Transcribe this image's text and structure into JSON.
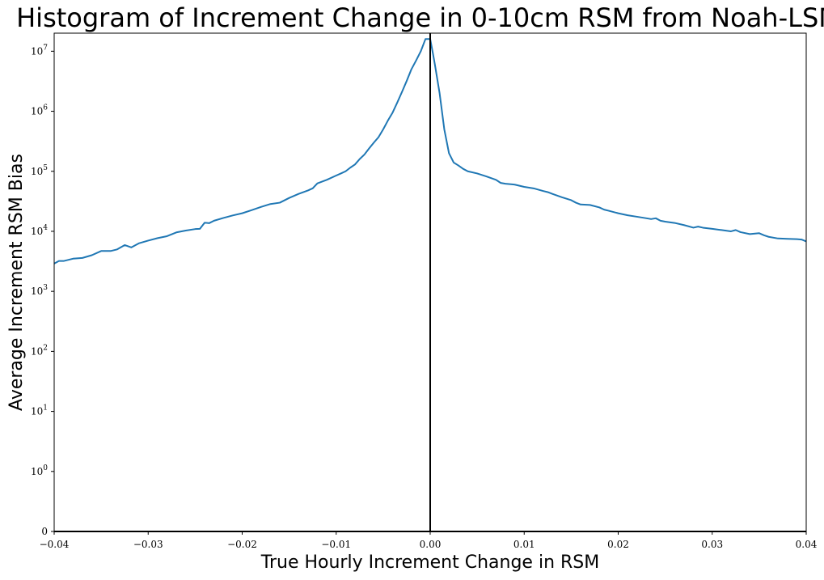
{
  "chart_data": {
    "type": "line",
    "title": "Histogram of Increment Change in 0-10cm RSM from Noah-LSM",
    "xlabel": "True Hourly Increment Change in RSM",
    "ylabel": "Average Increment RSM Bias",
    "xlim": [
      -0.04,
      0.04
    ],
    "ylim": [
      0,
      20000000
    ],
    "yscale": "symlog",
    "linthresh": 1,
    "grid": false,
    "legend": "none",
    "x_ticks": [
      {
        "value": -0.04,
        "label": "−0.04"
      },
      {
        "value": -0.03,
        "label": "−0.03"
      },
      {
        "value": -0.02,
        "label": "−0.02"
      },
      {
        "value": -0.01,
        "label": "−0.01"
      },
      {
        "value": 0.0,
        "label": "0.00"
      },
      {
        "value": 0.01,
        "label": "0.01"
      },
      {
        "value": 0.02,
        "label": "0.02"
      },
      {
        "value": 0.03,
        "label": "0.03"
      },
      {
        "value": 0.04,
        "label": "0.04"
      }
    ],
    "y_ticks": [
      {
        "value": 0,
        "base": "0",
        "exp": ""
      },
      {
        "value": 1,
        "base": "10",
        "exp": "0"
      },
      {
        "value": 10,
        "base": "10",
        "exp": "1"
      },
      {
        "value": 100,
        "base": "10",
        "exp": "2"
      },
      {
        "value": 1000,
        "base": "10",
        "exp": "3"
      },
      {
        "value": 10000,
        "base": "10",
        "exp": "4"
      },
      {
        "value": 100000,
        "base": "10",
        "exp": "5"
      },
      {
        "value": 1000000,
        "base": "10",
        "exp": "6"
      },
      {
        "value": 10000000,
        "base": "10",
        "exp": "7"
      }
    ],
    "reference_line_x": 0.0,
    "series": [
      {
        "color": "#1f77b4",
        "x": [
          -0.04,
          -0.0395,
          -0.039,
          -0.038,
          -0.037,
          -0.036,
          -0.035,
          -0.034,
          -0.0333,
          -0.0325,
          -0.0318,
          -0.031,
          -0.03,
          -0.029,
          -0.028,
          -0.027,
          -0.026,
          -0.025,
          -0.0245,
          -0.024,
          -0.0235,
          -0.023,
          -0.022,
          -0.021,
          -0.02,
          -0.019,
          -0.018,
          -0.017,
          -0.016,
          -0.015,
          -0.014,
          -0.013,
          -0.0125,
          -0.012,
          -0.011,
          -0.01,
          -0.0095,
          -0.009,
          -0.0085,
          -0.008,
          -0.0075,
          -0.007,
          -0.0065,
          -0.006,
          -0.0055,
          -0.005,
          -0.0045,
          -0.004,
          -0.0035,
          -0.003,
          -0.0025,
          -0.002,
          -0.0015,
          -0.001,
          -0.0005,
          0.0,
          0.0003,
          0.0005,
          0.001,
          0.0015,
          0.002,
          0.0025,
          0.003,
          0.0035,
          0.004,
          0.005,
          0.006,
          0.007,
          0.0075,
          0.008,
          0.009,
          0.01,
          0.011,
          0.012,
          0.0125,
          0.013,
          0.014,
          0.015,
          0.0155,
          0.016,
          0.017,
          0.018,
          0.0185,
          0.019,
          0.02,
          0.021,
          0.022,
          0.023,
          0.0235,
          0.024,
          0.0245,
          0.025,
          0.026,
          0.027,
          0.028,
          0.0285,
          0.029,
          0.03,
          0.031,
          0.032,
          0.0325,
          0.033,
          0.034,
          0.035,
          0.0355,
          0.036,
          0.037,
          0.038,
          0.039,
          0.0395,
          0.04
        ],
        "y": [
          2900,
          3200,
          3200,
          3500,
          3600,
          4000,
          4700,
          4700,
          5000,
          5900,
          5400,
          6300,
          7000,
          7700,
          8300,
          9600,
          10300,
          10900,
          11000,
          13900,
          13700,
          15000,
          16700,
          18400,
          20000,
          22500,
          25500,
          28500,
          30000,
          36000,
          42000,
          48000,
          52000,
          63000,
          72000,
          85000,
          92000,
          100000,
          115000,
          130000,
          160000,
          190000,
          240000,
          300000,
          370000,
          500000,
          700000,
          950000,
          1400000,
          2100000,
          3200000,
          5000000,
          7000000,
          10000000,
          16000000,
          16000000,
          9000000,
          6000000,
          2000000,
          500000,
          200000,
          140000,
          125000,
          110000,
          100000,
          92000,
          82000,
          72000,
          64000,
          62000,
          60000,
          55000,
          52000,
          47000,
          45000,
          42000,
          37000,
          33000,
          30000,
          28000,
          27500,
          25000,
          23000,
          22000,
          20000,
          18500,
          17500,
          16500,
          16000,
          16500,
          15000,
          14500,
          13800,
          12700,
          11500,
          12000,
          11500,
          11000,
          10500,
          10000,
          10500,
          9700,
          9000,
          9300,
          8600,
          8100,
          7600,
          7500,
          7400,
          7300,
          6800
        ]
      }
    ]
  }
}
